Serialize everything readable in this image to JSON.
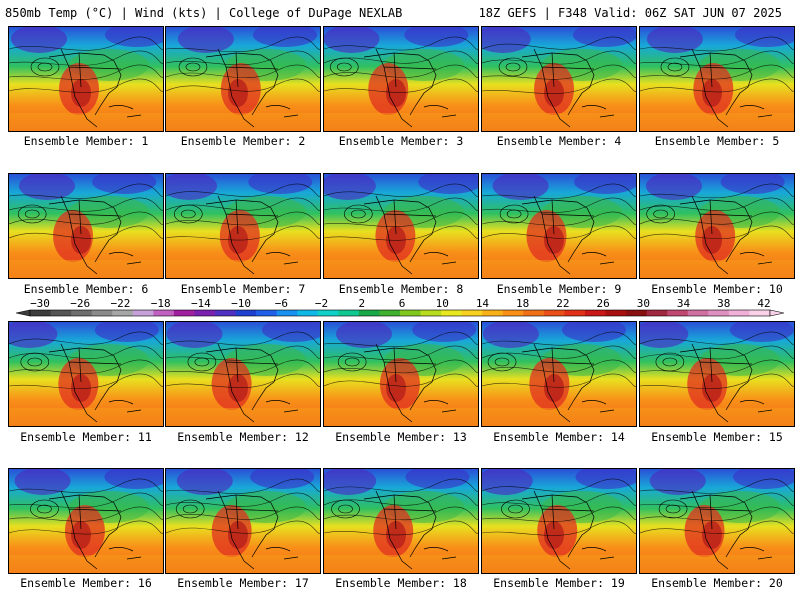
{
  "header": {
    "left": "850mb Temp (°C) | Wind (kts) | College of DuPage NEXLAB",
    "right": "18Z GEFS | F348 Valid: 06Z SAT JUN 07 2025"
  },
  "panels": [
    {
      "label": "Ensemble Member: 1"
    },
    {
      "label": "Ensemble Member: 2"
    },
    {
      "label": "Ensemble Member: 3"
    },
    {
      "label": "Ensemble Member: 4"
    },
    {
      "label": "Ensemble Member: 5"
    },
    {
      "label": "Ensemble Member: 6"
    },
    {
      "label": "Ensemble Member: 7"
    },
    {
      "label": "Ensemble Member: 8"
    },
    {
      "label": "Ensemble Member: 9"
    },
    {
      "label": "Ensemble Member: 10"
    },
    {
      "label": "Ensemble Member: 11"
    },
    {
      "label": "Ensemble Member: 12"
    },
    {
      "label": "Ensemble Member: 13"
    },
    {
      "label": "Ensemble Member: 14"
    },
    {
      "label": "Ensemble Member: 15"
    },
    {
      "label": "Ensemble Member: 16"
    },
    {
      "label": "Ensemble Member: 17"
    },
    {
      "label": "Ensemble Member: 18"
    },
    {
      "label": "Ensemble Member: 19"
    },
    {
      "label": "Ensemble Member: 20"
    }
  ],
  "colorbar": {
    "tick_labels": [
      "−30",
      "−26",
      "−22",
      "−18",
      "−14",
      "−10",
      "−6",
      "−2",
      "2",
      "6",
      "10",
      "14",
      "18",
      "22",
      "26",
      "30",
      "34",
      "38",
      "42"
    ],
    "colors": [
      "#3d3d3d",
      "#555555",
      "#6e6e6e",
      "#8a8a8a",
      "#a6a6a6",
      "#c6a0d8",
      "#c060c0",
      "#a020a0",
      "#7a20b0",
      "#5030c0",
      "#2040d0",
      "#2060e8",
      "#1890f0",
      "#10b8e8",
      "#10d0c8",
      "#10c890",
      "#18a848",
      "#40b030",
      "#80c820",
      "#b8dc20",
      "#e8e820",
      "#f8d020",
      "#f8b018",
      "#f89018",
      "#f07018",
      "#e85018",
      "#e03018",
      "#c81818",
      "#a81010",
      "#881010",
      "#a02840",
      "#c04870",
      "#d070a0",
      "#e090c0",
      "#f0b0d8",
      "#f8d0e8"
    ]
  }
}
